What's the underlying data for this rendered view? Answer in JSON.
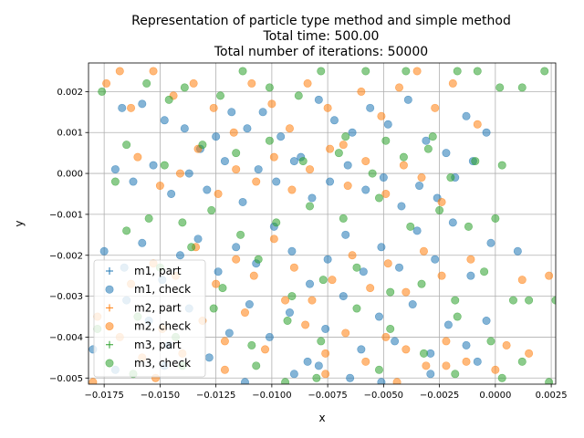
{
  "chart_data": {
    "type": "scatter",
    "title": [
      "Representation of particle type method and simple method",
      "Total time: 500.00",
      "Total number of iterations: 50000"
    ],
    "xlabel": "x",
    "ylabel": "y",
    "xlim": [
      -0.0182,
      0.0027
    ],
    "ylim": [
      -0.00515,
      0.0027
    ],
    "xticks": [
      -0.0175,
      -0.015,
      -0.0125,
      -0.01,
      -0.0075,
      -0.005,
      -0.0025,
      0.0,
      0.0025
    ],
    "xtick_labels": [
      "−0.0175",
      "−0.0150",
      "−0.0125",
      "−0.0100",
      "−0.0075",
      "−0.0050",
      "−0.0025",
      "0.0000",
      "0.0025"
    ],
    "yticks": [
      -0.005,
      -0.004,
      -0.003,
      -0.002,
      -0.001,
      0.0,
      0.001,
      0.002
    ],
    "ytick_labels": [
      "−0.005",
      "−0.004",
      "−0.003",
      "−0.002",
      "−0.001",
      "0.000",
      "0.001",
      "0.002"
    ],
    "grid": true,
    "legend_position": "lower-left",
    "series": [
      {
        "name": "m1, part",
        "marker": "plus",
        "color": "#1f77b4",
        "points": []
      },
      {
        "name": "m1, check",
        "marker": "circle",
        "color": "#1f77b4",
        "points": [
          [
            -0.0167,
            0.0016
          ],
          [
            -0.0158,
            0.0017
          ],
          [
            -0.0148,
            0.0013
          ],
          [
            -0.0139,
            0.0011
          ],
          [
            -0.0132,
            0.0006
          ],
          [
            -0.0125,
            0.0009
          ],
          [
            -0.0118,
            0.0015
          ],
          [
            -0.0111,
            0.0011
          ],
          [
            -0.0104,
            0.0015
          ],
          [
            -0.0096,
            0.0009
          ],
          [
            -0.0087,
            0.0004
          ],
          [
            -0.0079,
            0.0018
          ],
          [
            -0.0072,
            0.0013
          ],
          [
            -0.0064,
            0.001
          ],
          [
            -0.0056,
            0.0016
          ],
          [
            -0.0048,
            0.0012
          ],
          [
            -0.0039,
            0.0018
          ],
          [
            -0.0031,
            0.0008
          ],
          [
            -0.0022,
            0.0005
          ],
          [
            -0.0013,
            0.0014
          ],
          [
            -0.0004,
            0.001
          ],
          [
            -0.017,
            0.0001
          ],
          [
            -0.0162,
            -0.0002
          ],
          [
            -0.0153,
            0.0002
          ],
          [
            -0.0145,
            -0.0005
          ],
          [
            -0.0137,
            0.0
          ],
          [
            -0.0129,
            -0.0004
          ],
          [
            -0.0121,
            0.0003
          ],
          [
            -0.0113,
            -0.0007
          ],
          [
            -0.0106,
            0.0001
          ],
          [
            -0.0098,
            -0.0002
          ],
          [
            -0.009,
            0.0003
          ],
          [
            -0.0082,
            -0.0006
          ],
          [
            -0.0074,
            -0.0002
          ],
          [
            -0.0066,
            0.0002
          ],
          [
            -0.0058,
            -0.0004
          ],
          [
            -0.005,
            -0.0001
          ],
          [
            -0.0042,
            -0.0008
          ],
          [
            -0.0034,
            -0.0003
          ],
          [
            -0.0026,
            -0.0006
          ],
          [
            -0.0018,
            -0.0001
          ],
          [
            -0.001,
            0.0003
          ],
          [
            -0.0175,
            -0.0019
          ],
          [
            -0.0166,
            -0.0023
          ],
          [
            -0.0158,
            -0.0017
          ],
          [
            -0.0149,
            -0.0026
          ],
          [
            -0.0141,
            -0.002
          ],
          [
            -0.0133,
            -0.0016
          ],
          [
            -0.0124,
            -0.0024
          ],
          [
            -0.0116,
            -0.0018
          ],
          [
            -0.0107,
            -0.0022
          ],
          [
            -0.0099,
            -0.0013
          ],
          [
            -0.0091,
            -0.0019
          ],
          [
            -0.0083,
            -0.0027
          ],
          [
            -0.0075,
            -0.0021
          ],
          [
            -0.0067,
            -0.0015
          ],
          [
            -0.0059,
            -0.0024
          ],
          [
            -0.0051,
            -0.0018
          ],
          [
            -0.0043,
            -0.0023
          ],
          [
            -0.0035,
            -0.0014
          ],
          [
            -0.0027,
            -0.0021
          ],
          [
            -0.0019,
            -0.0012
          ],
          [
            -0.0011,
            -0.0025
          ],
          [
            -0.0002,
            -0.0017
          ],
          [
            0.001,
            -0.0019
          ],
          [
            -0.0165,
            -0.0031
          ],
          [
            -0.0155,
            -0.0036
          ],
          [
            -0.0146,
            -0.0042
          ],
          [
            -0.0137,
            -0.0033
          ],
          [
            -0.0128,
            -0.0045
          ],
          [
            -0.0119,
            -0.0039
          ],
          [
            -0.011,
            -0.0032
          ],
          [
            -0.0101,
            -0.004
          ],
          [
            -0.0092,
            -0.0034
          ],
          [
            -0.0084,
            -0.0046
          ],
          [
            -0.0076,
            -0.0038
          ],
          [
            -0.0068,
            -0.003
          ],
          [
            -0.006,
            -0.0043
          ],
          [
            -0.0052,
            -0.0035
          ],
          [
            -0.0045,
            -0.0041
          ],
          [
            -0.0037,
            -0.0032
          ],
          [
            -0.0029,
            -0.0044
          ],
          [
            -0.0021,
            -0.0037
          ],
          [
            -0.0013,
            -0.0042
          ],
          [
            -0.0004,
            -0.0036
          ],
          [
            -0.018,
            -0.0043
          ],
          [
            -0.017,
            -0.0048
          ],
          [
            -0.0148,
            -0.0047
          ],
          [
            -0.0112,
            -0.0051
          ],
          [
            -0.009,
            -0.0049
          ],
          [
            -0.0079,
            -0.0047
          ],
          [
            -0.0065,
            -0.005
          ],
          [
            -0.0051,
            -0.0051
          ],
          [
            -0.0029,
            -0.0049
          ],
          [
            -0.0008,
            -0.0046
          ]
        ]
      },
      {
        "name": "m2, part",
        "marker": "plus",
        "color": "#ff7f0e",
        "points": []
      },
      {
        "name": "m2, check",
        "marker": "circle",
        "color": "#ff7f0e",
        "points": [
          [
            -0.0174,
            0.0022
          ],
          [
            -0.0168,
            0.0025
          ],
          [
            -0.0163,
            0.0016
          ],
          [
            -0.0153,
            0.0025
          ],
          [
            -0.0144,
            0.0019
          ],
          [
            -0.0135,
            0.0022
          ],
          [
            -0.0126,
            0.0016
          ],
          [
            -0.0117,
            0.001
          ],
          [
            -0.0109,
            0.0022
          ],
          [
            -0.01,
            0.0017
          ],
          [
            -0.0092,
            0.0011
          ],
          [
            -0.0084,
            0.0022
          ],
          [
            -0.0075,
            0.0016
          ],
          [
            -0.0068,
            0.0007
          ],
          [
            -0.006,
            0.002
          ],
          [
            -0.0051,
            0.0014
          ],
          [
            -0.0043,
            0.0021
          ],
          [
            -0.0035,
            0.0025
          ],
          [
            -0.0027,
            0.0016
          ],
          [
            -0.0019,
            0.0022
          ],
          [
            -0.0008,
            0.0012
          ],
          [
            -0.016,
            0.0004
          ],
          [
            -0.015,
            -0.0003
          ],
          [
            -0.0141,
            0.0
          ],
          [
            -0.0133,
            0.0006
          ],
          [
            -0.0124,
            -0.0005
          ],
          [
            -0.0116,
            0.0001
          ],
          [
            -0.0107,
            -0.0002
          ],
          [
            -0.0099,
            0.0004
          ],
          [
            -0.0091,
            -0.0004
          ],
          [
            -0.0083,
            0.0001
          ],
          [
            -0.0074,
            0.0006
          ],
          [
            -0.0066,
            -0.0003
          ],
          [
            -0.0058,
            0.0003
          ],
          [
            -0.0049,
            -0.0005
          ],
          [
            -0.0041,
            0.0002
          ],
          [
            -0.0033,
            -0.0001
          ],
          [
            -0.0024,
            -0.0007
          ],
          [
            -0.0163,
            -0.0027
          ],
          [
            -0.0153,
            -0.0022
          ],
          [
            -0.0143,
            -0.0025
          ],
          [
            -0.0134,
            -0.0018
          ],
          [
            -0.0125,
            -0.0027
          ],
          [
            -0.0116,
            -0.0021
          ],
          [
            -0.0108,
            -0.0025
          ],
          [
            -0.0099,
            -0.0016
          ],
          [
            -0.009,
            -0.0023
          ],
          [
            -0.0082,
            -0.0031
          ],
          [
            -0.0073,
            -0.0026
          ],
          [
            -0.0064,
            -0.002
          ],
          [
            -0.0056,
            -0.0028
          ],
          [
            -0.0048,
            -0.0022
          ],
          [
            -0.004,
            -0.0029
          ],
          [
            -0.0032,
            -0.0019
          ],
          [
            -0.0024,
            -0.0025
          ],
          [
            -0.0011,
            -0.0021
          ],
          [
            0.0012,
            -0.0026
          ],
          [
            0.0024,
            -0.0025
          ],
          [
            -0.0178,
            -0.0035
          ],
          [
            -0.0168,
            -0.004
          ],
          [
            -0.0158,
            -0.0045
          ],
          [
            -0.0149,
            -0.0038
          ],
          [
            -0.014,
            -0.0044
          ],
          [
            -0.0131,
            -0.0036
          ],
          [
            -0.0121,
            -0.0041
          ],
          [
            -0.0112,
            -0.0034
          ],
          [
            -0.0103,
            -0.0043
          ],
          [
            -0.0094,
            -0.0031
          ],
          [
            -0.0085,
            -0.0037
          ],
          [
            -0.0076,
            -0.0044
          ],
          [
            -0.0067,
            -0.0039
          ],
          [
            -0.0058,
            -0.0046
          ],
          [
            -0.0049,
            -0.004
          ],
          [
            -0.004,
            -0.0043
          ],
          [
            -0.0031,
            -0.0047
          ],
          [
            -0.0022,
            -0.0041
          ],
          [
            -0.0013,
            -0.0046
          ],
          [
            0.0005,
            -0.0042
          ],
          [
            0.0015,
            -0.0044
          ],
          [
            -0.018,
            -0.0051
          ],
          [
            -0.0152,
            -0.005
          ],
          [
            -0.0121,
            -0.0048
          ],
          [
            -0.0076,
            -0.0049
          ],
          [
            -0.0044,
            -0.0051
          ],
          [
            -0.0022,
            -0.0047
          ],
          [
            0.0,
            -0.0048
          ]
        ]
      },
      {
        "name": "m3, part",
        "marker": "plus",
        "color": "#2ca02c",
        "points": []
      },
      {
        "name": "m3, check",
        "marker": "circle",
        "color": "#2ca02c",
        "points": [
          [
            -0.0176,
            0.002
          ],
          [
            -0.0156,
            0.0022
          ],
          [
            -0.0146,
            0.0018
          ],
          [
            -0.0139,
            0.0021
          ],
          [
            -0.0123,
            0.0019
          ],
          [
            -0.0113,
            0.0025
          ],
          [
            -0.0101,
            0.0021
          ],
          [
            -0.0088,
            0.0019
          ],
          [
            -0.0078,
            0.0025
          ],
          [
            -0.0067,
            0.0009
          ],
          [
            -0.0058,
            0.0025
          ],
          [
            -0.0049,
            0.0008
          ],
          [
            -0.004,
            0.0025
          ],
          [
            -0.0028,
            0.0009
          ],
          [
            -0.0017,
            0.0025
          ],
          [
            -0.0008,
            0.0025
          ],
          [
            0.0002,
            0.0021
          ],
          [
            0.0012,
            0.0021
          ],
          [
            0.0022,
            0.0025
          ],
          [
            -0.0165,
            0.0007
          ],
          [
            -0.0148,
            0.0002
          ],
          [
            -0.0131,
            0.0007
          ],
          [
            -0.0116,
            0.0005
          ],
          [
            -0.0101,
            0.0008
          ],
          [
            -0.0086,
            0.0003
          ],
          [
            -0.007,
            0.0005
          ],
          [
            -0.0055,
            0.0
          ],
          [
            -0.0041,
            0.0004
          ],
          [
            -0.003,
            0.0006
          ],
          [
            -0.002,
            -0.0001
          ],
          [
            -0.0009,
            0.0003
          ],
          [
            0.0003,
            0.0002
          ],
          [
            -0.017,
            -0.0002
          ],
          [
            -0.0155,
            -0.0011
          ],
          [
            -0.014,
            -0.0012
          ],
          [
            -0.0127,
            -0.0009
          ],
          [
            -0.0114,
            -0.0015
          ],
          [
            -0.0098,
            -0.0012
          ],
          [
            -0.0083,
            -0.0008
          ],
          [
            -0.0068,
            -0.0011
          ],
          [
            -0.0052,
            -0.0006
          ],
          [
            -0.0038,
            -0.0013
          ],
          [
            -0.0025,
            -0.0009
          ],
          [
            -0.0012,
            -0.0013
          ],
          [
            0.0,
            -0.0011
          ],
          [
            -0.0165,
            -0.0014
          ],
          [
            -0.015,
            -0.0023
          ],
          [
            -0.0136,
            -0.0018
          ],
          [
            -0.0122,
            -0.0028
          ],
          [
            -0.0106,
            -0.0021
          ],
          [
            -0.0091,
            -0.003
          ],
          [
            -0.0077,
            -0.0026
          ],
          [
            -0.0062,
            -0.0023
          ],
          [
            -0.0047,
            -0.0029
          ],
          [
            -0.0033,
            -0.0027
          ],
          [
            -0.0018,
            -0.0031
          ],
          [
            -0.0005,
            -0.0024
          ],
          [
            0.0008,
            -0.0031
          ],
          [
            0.0015,
            -0.0031
          ],
          [
            0.0027,
            -0.0031
          ],
          [
            -0.0178,
            -0.0038
          ],
          [
            -0.016,
            -0.0035
          ],
          [
            -0.0143,
            -0.004
          ],
          [
            -0.0126,
            -0.0033
          ],
          [
            -0.0109,
            -0.0042
          ],
          [
            -0.0093,
            -0.0036
          ],
          [
            -0.0078,
            -0.0041
          ],
          [
            -0.0062,
            -0.0033
          ],
          [
            -0.0047,
            -0.0038
          ],
          [
            -0.0032,
            -0.0044
          ],
          [
            -0.0017,
            -0.0035
          ],
          [
            -0.0002,
            -0.0041
          ],
          [
            0.0012,
            -0.0046
          ],
          [
            -0.0162,
            -0.0049
          ],
          [
            -0.014,
            -0.0047
          ],
          [
            -0.0107,
            -0.0047
          ],
          [
            -0.0094,
            -0.0051
          ],
          [
            -0.008,
            -0.005
          ],
          [
            -0.0052,
            -0.0048
          ],
          [
            -0.0018,
            -0.0049
          ],
          [
            0.0003,
            -0.005
          ],
          [
            0.0024,
            -0.0051
          ]
        ]
      }
    ]
  }
}
